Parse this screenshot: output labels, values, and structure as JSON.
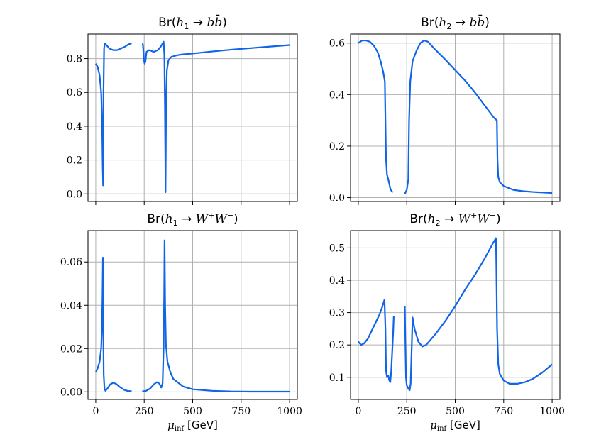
{
  "chart_data": [
    {
      "type": "line",
      "title": "Br(h1 → b b̄)",
      "title_parts": {
        "prefix": "Br(",
        "higgs": "h",
        "sub": "1",
        "arrow": " → ",
        "final": "b",
        "final2": "b̄",
        "suffix": ")"
      },
      "xlabel": "",
      "ylabel": "",
      "xlim": [
        -40,
        1040
      ],
      "ylim": [
        -0.045,
        0.945
      ],
      "xticks": [
        0,
        250,
        500,
        750,
        1000
      ],
      "xtick_labels": [
        "",
        "",
        "",
        "",
        ""
      ],
      "yticks": [
        0.0,
        0.2,
        0.4,
        0.6,
        0.8
      ],
      "ytick_labels": [
        "0.0",
        "0.2",
        "0.4",
        "0.6",
        "0.8"
      ],
      "grid": true,
      "color": "#1064e8",
      "segments": [
        [
          [
            0,
            0.77
          ],
          [
            10,
            0.75
          ],
          [
            20,
            0.7
          ],
          [
            28,
            0.6
          ],
          [
            33,
            0.4
          ],
          [
            36,
            0.15
          ],
          [
            38,
            0.05
          ],
          [
            40,
            0.6
          ],
          [
            43,
            0.86
          ],
          [
            47,
            0.89
          ],
          [
            55,
            0.88
          ],
          [
            70,
            0.86
          ],
          [
            90,
            0.85
          ],
          [
            110,
            0.85
          ],
          [
            130,
            0.86
          ],
          [
            150,
            0.87
          ],
          [
            170,
            0.885
          ],
          [
            185,
            0.89
          ]
        ],
        [
          [
            242,
            0.89
          ],
          [
            245,
            0.86
          ],
          [
            249,
            0.79
          ],
          [
            252,
            0.77
          ],
          [
            256,
            0.78
          ],
          [
            262,
            0.84
          ],
          [
            275,
            0.85
          ],
          [
            300,
            0.84
          ],
          [
            320,
            0.85
          ],
          [
            335,
            0.87
          ],
          [
            345,
            0.89
          ],
          [
            350,
            0.9
          ],
          [
            354,
            0.82
          ],
          [
            357,
            0.5
          ],
          [
            359,
            0.2
          ],
          [
            360,
            0.01
          ],
          [
            363,
            0.55
          ],
          [
            367,
            0.73
          ],
          [
            375,
            0.79
          ],
          [
            390,
            0.81
          ],
          [
            420,
            0.82
          ],
          [
            450,
            0.825
          ],
          [
            500,
            0.83
          ],
          [
            600,
            0.842
          ],
          [
            700,
            0.853
          ],
          [
            800,
            0.862
          ],
          [
            900,
            0.871
          ],
          [
            1000,
            0.88
          ]
        ]
      ]
    },
    {
      "type": "line",
      "title": "Br(h2 → b b̄)",
      "title_parts": {
        "prefix": "Br(",
        "higgs": "h",
        "sub": "2",
        "arrow": " → ",
        "final": "b",
        "final2": "b̄",
        "suffix": ")"
      },
      "xlabel": "",
      "ylabel": "",
      "xlim": [
        -40,
        1040
      ],
      "ylim": [
        -0.015,
        0.635
      ],
      "xticks": [
        0,
        250,
        500,
        750,
        1000
      ],
      "xtick_labels": [
        "",
        "",
        "",
        "",
        ""
      ],
      "yticks": [
        0.0,
        0.2,
        0.4,
        0.6
      ],
      "ytick_labels": [
        "0.0",
        "0.2",
        "0.4",
        "0.6"
      ],
      "grid": true,
      "color": "#1064e8",
      "segments": [
        [
          [
            0,
            0.6
          ],
          [
            20,
            0.61
          ],
          [
            40,
            0.61
          ],
          [
            60,
            0.605
          ],
          [
            80,
            0.59
          ],
          [
            100,
            0.565
          ],
          [
            115,
            0.53
          ],
          [
            128,
            0.49
          ],
          [
            137,
            0.45
          ],
          [
            140,
            0.3
          ],
          [
            143,
            0.15
          ],
          [
            148,
            0.09
          ],
          [
            158,
            0.06
          ],
          [
            165,
            0.035
          ],
          [
            172,
            0.025
          ],
          [
            178,
            0.02
          ]
        ],
        [
          [
            240,
            0.015
          ],
          [
            250,
            0.03
          ],
          [
            258,
            0.07
          ],
          [
            262,
            0.3
          ],
          [
            268,
            0.45
          ],
          [
            280,
            0.53
          ],
          [
            300,
            0.57
          ],
          [
            320,
            0.6
          ],
          [
            340,
            0.61
          ],
          [
            360,
            0.605
          ],
          [
            390,
            0.58
          ],
          [
            450,
            0.535
          ],
          [
            500,
            0.495
          ],
          [
            550,
            0.455
          ],
          [
            600,
            0.41
          ],
          [
            650,
            0.36
          ],
          [
            700,
            0.31
          ],
          [
            715,
            0.3
          ],
          [
            718,
            0.15
          ],
          [
            722,
            0.08
          ],
          [
            730,
            0.06
          ],
          [
            750,
            0.045
          ],
          [
            800,
            0.03
          ],
          [
            850,
            0.025
          ],
          [
            900,
            0.022
          ],
          [
            1000,
            0.018
          ]
        ]
      ]
    },
    {
      "type": "line",
      "title": "Br(h1 → W+W−)",
      "title_parts": {
        "prefix": "Br(",
        "higgs": "h",
        "sub": "1",
        "arrow": " → ",
        "final": "W",
        "sup1": "+",
        "final2": "W",
        "sup2": "−",
        "suffix": ")"
      },
      "xlabel": "μinf [GeV]",
      "ylabel": "",
      "xlim": [
        -40,
        1040
      ],
      "ylim": [
        -0.0035,
        0.0745
      ],
      "xticks": [
        0,
        250,
        500,
        750,
        1000
      ],
      "xtick_labels": [
        "0",
        "250",
        "500",
        "750",
        "1000"
      ],
      "yticks": [
        0.0,
        0.02,
        0.04,
        0.06
      ],
      "ytick_labels": [
        "0.00",
        "0.02",
        "0.04",
        "0.06"
      ],
      "grid": true,
      "color": "#1064e8",
      "segments": [
        [
          [
            0,
            0.009
          ],
          [
            10,
            0.011
          ],
          [
            20,
            0.014
          ],
          [
            28,
            0.02
          ],
          [
            32,
            0.03
          ],
          [
            35,
            0.045
          ],
          [
            37,
            0.062
          ],
          [
            39,
            0.03
          ],
          [
            41,
            0.008
          ],
          [
            45,
            0.0015
          ],
          [
            50,
            0.0005
          ],
          [
            60,
            0.0015
          ],
          [
            75,
            0.0035
          ],
          [
            90,
            0.0042
          ],
          [
            105,
            0.0037
          ],
          [
            125,
            0.0022
          ],
          [
            145,
            0.001
          ],
          [
            165,
            0.0004
          ],
          [
            185,
            0.0003
          ]
        ],
        [
          [
            240,
            0.0002
          ],
          [
            260,
            0.0005
          ],
          [
            280,
            0.0015
          ],
          [
            300,
            0.0035
          ],
          [
            315,
            0.0045
          ],
          [
            328,
            0.0038
          ],
          [
            338,
            0.002
          ],
          [
            345,
            0.004
          ],
          [
            350,
            0.02
          ],
          [
            353,
            0.045
          ],
          [
            355,
            0.07
          ],
          [
            358,
            0.04
          ],
          [
            362,
            0.022
          ],
          [
            370,
            0.014
          ],
          [
            385,
            0.009
          ],
          [
            400,
            0.006
          ],
          [
            450,
            0.0025
          ],
          [
            500,
            0.0012
          ],
          [
            600,
            0.0005
          ],
          [
            700,
            0.0002
          ],
          [
            800,
            0.0001
          ],
          [
            1000,
            0.0001
          ]
        ]
      ]
    },
    {
      "type": "line",
      "title": "Br(h2 → W+W−)",
      "title_parts": {
        "prefix": "Br(",
        "higgs": "h",
        "sub": "2",
        "arrow": " → ",
        "final": "W",
        "sup1": "+",
        "final2": "W",
        "sup2": "−",
        "suffix": ")"
      },
      "xlabel": "μinf [GeV]",
      "ylabel": "",
      "xlim": [
        -40,
        1040
      ],
      "ylim": [
        0.0315,
        0.5535
      ],
      "xticks": [
        0,
        250,
        500,
        750,
        1000
      ],
      "xtick_labels": [
        "0",
        "250",
        "500",
        "750",
        "1000"
      ],
      "yticks": [
        0.1,
        0.2,
        0.3,
        0.4,
        0.5
      ],
      "ytick_labels": [
        "0.1",
        "0.2",
        "0.3",
        "0.4",
        "0.5"
      ],
      "grid": true,
      "color": "#1064e8",
      "segments": [
        [
          [
            0,
            0.21
          ],
          [
            15,
            0.2
          ],
          [
            30,
            0.205
          ],
          [
            50,
            0.22
          ],
          [
            70,
            0.245
          ],
          [
            90,
            0.27
          ],
          [
            110,
            0.295
          ],
          [
            125,
            0.32
          ],
          [
            135,
            0.34
          ],
          [
            140,
            0.25
          ],
          [
            143,
            0.12
          ],
          [
            148,
            0.1
          ],
          [
            155,
            0.105
          ],
          [
            160,
            0.09
          ],
          [
            165,
            0.085
          ],
          [
            170,
            0.12
          ],
          [
            175,
            0.18
          ],
          [
            180,
            0.24
          ],
          [
            183,
            0.29
          ]
        ],
        [
          [
            240,
            0.32
          ],
          [
            243,
            0.2
          ],
          [
            246,
            0.1
          ],
          [
            250,
            0.075
          ],
          [
            258,
            0.065
          ],
          [
            265,
            0.06
          ],
          [
            270,
            0.08
          ],
          [
            275,
            0.18
          ],
          [
            280,
            0.285
          ],
          [
            290,
            0.25
          ],
          [
            310,
            0.21
          ],
          [
            330,
            0.195
          ],
          [
            350,
            0.2
          ],
          [
            400,
            0.235
          ],
          [
            450,
            0.275
          ],
          [
            500,
            0.32
          ],
          [
            550,
            0.37
          ],
          [
            600,
            0.415
          ],
          [
            650,
            0.465
          ],
          [
            700,
            0.52
          ],
          [
            710,
            0.53
          ],
          [
            712,
            0.45
          ],
          [
            716,
            0.25
          ],
          [
            722,
            0.14
          ],
          [
            730,
            0.11
          ],
          [
            750,
            0.09
          ],
          [
            780,
            0.08
          ],
          [
            820,
            0.08
          ],
          [
            860,
            0.085
          ],
          [
            900,
            0.095
          ],
          [
            950,
            0.115
          ],
          [
            1000,
            0.14
          ]
        ]
      ]
    }
  ]
}
